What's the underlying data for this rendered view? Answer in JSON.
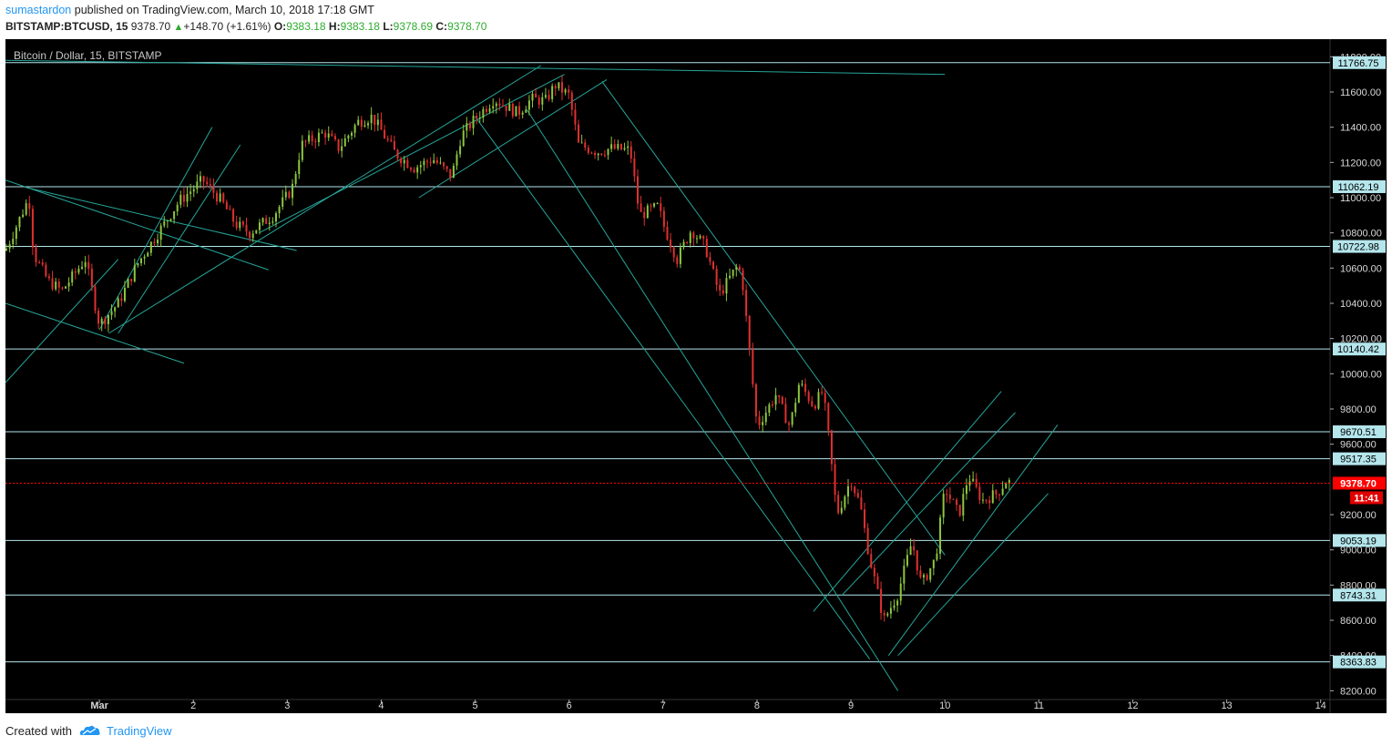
{
  "header": {
    "author": "sumastardon",
    "published_text": "published on TradingView.com, March 10, 2018 17:18 GMT",
    "symbol": "BITSTAMP:BTCUSD, 15",
    "last": "9378.70",
    "change": "+148.70 (+1.61%)",
    "o_label": "O:",
    "o_value": "9383.18",
    "h_label": "H:",
    "h_value": "9383.18",
    "l_label": "L:",
    "l_value": "9378.69",
    "c_label": "C:",
    "c_value": "9378.70"
  },
  "footer": {
    "created_with": "Created with",
    "brand": "TradingView"
  },
  "colors": {
    "background": "#000000",
    "candle_up": "#8cc63f",
    "candle_down": "#e03030",
    "level_line": "#b4e6ec",
    "trend_line": "#26a69a",
    "last_price": "#ff0000"
  },
  "chart_data": {
    "type": "candlestick",
    "title": "Bitcoin / Dollar, 15, BITSTAMP",
    "ylim": [
      8150,
      11900
    ],
    "xlim": [
      0,
      14.1
    ],
    "y_ticks": [
      "11800.00",
      "11600.00",
      "11400.00",
      "11200.00",
      "11000.00",
      "10800.00",
      "10600.00",
      "10400.00",
      "10200.00",
      "10000.00",
      "9800.00",
      "9600.00",
      "9200.00",
      "9000.00",
      "8800.00",
      "8600.00",
      "8400.00",
      "8200.00"
    ],
    "x_ticks": [
      {
        "label": "Mar",
        "x": 1
      },
      {
        "label": "2",
        "x": 2
      },
      {
        "label": "3",
        "x": 3
      },
      {
        "label": "4",
        "x": 4
      },
      {
        "label": "5",
        "x": 5
      },
      {
        "label": "6",
        "x": 6
      },
      {
        "label": "7",
        "x": 7
      },
      {
        "label": "8",
        "x": 8
      },
      {
        "label": "9",
        "x": 9
      },
      {
        "label": "10",
        "x": 10
      },
      {
        "label": "11",
        "x": 11
      },
      {
        "label": "12",
        "x": 12
      },
      {
        "label": "13",
        "x": 13
      },
      {
        "label": "14",
        "x": 14
      }
    ],
    "levels": [
      {
        "value": 11766.75,
        "label": "11766.75"
      },
      {
        "value": 11062.19,
        "label": "11062.19"
      },
      {
        "value": 10722.98,
        "label": "10722.98"
      },
      {
        "value": 10140.42,
        "label": "10140.42"
      },
      {
        "value": 9670.51,
        "label": "9670.51"
      },
      {
        "value": 9517.35,
        "label": "9517.35"
      },
      {
        "value": 9053.19,
        "label": "9053.19"
      },
      {
        "value": 8743.31,
        "label": "8743.31"
      },
      {
        "value": 8363.83,
        "label": "8363.83"
      }
    ],
    "last_price": {
      "value": 9378.7,
      "label": "9378.70",
      "countdown": "11:41"
    },
    "price_path": [
      [
        0.0,
        10700
      ],
      [
        0.25,
        11000
      ],
      [
        0.3,
        10680
      ],
      [
        0.45,
        10530
      ],
      [
        0.6,
        10470
      ],
      [
        0.85,
        10650
      ],
      [
        1.0,
        10280
      ],
      [
        1.2,
        10400
      ],
      [
        1.4,
        10620
      ],
      [
        1.6,
        10780
      ],
      [
        1.85,
        10980
      ],
      [
        2.1,
        11100
      ],
      [
        2.3,
        10980
      ],
      [
        2.45,
        10850
      ],
      [
        2.6,
        10800
      ],
      [
        2.85,
        10900
      ],
      [
        3.05,
        11050
      ],
      [
        3.15,
        11300
      ],
      [
        3.4,
        11370
      ],
      [
        3.55,
        11280
      ],
      [
        3.75,
        11430
      ],
      [
        3.9,
        11460
      ],
      [
        4.0,
        11380
      ],
      [
        4.15,
        11250
      ],
      [
        4.35,
        11170
      ],
      [
        4.55,
        11220
      ],
      [
        4.75,
        11120
      ],
      [
        4.85,
        11350
      ],
      [
        5.0,
        11450
      ],
      [
        5.2,
        11560
      ],
      [
        5.45,
        11480
      ],
      [
        5.6,
        11560
      ],
      [
        5.75,
        11550
      ],
      [
        5.85,
        11640
      ],
      [
        6.0,
        11580
      ],
      [
        6.1,
        11300
      ],
      [
        6.3,
        11260
      ],
      [
        6.45,
        11280
      ],
      [
        6.65,
        11270
      ],
      [
        6.75,
        10900
      ],
      [
        6.95,
        10950
      ],
      [
        7.0,
        10850
      ],
      [
        7.15,
        10650
      ],
      [
        7.3,
        10820
      ],
      [
        7.45,
        10720
      ],
      [
        7.6,
        10450
      ],
      [
        7.8,
        10620
      ],
      [
        7.85,
        10500
      ],
      [
        8.0,
        9700
      ],
      [
        8.2,
        9880
      ],
      [
        8.35,
        9700
      ],
      [
        8.45,
        9950
      ],
      [
        8.6,
        9820
      ],
      [
        8.7,
        9900
      ],
      [
        8.75,
        9700
      ],
      [
        8.85,
        9200
      ],
      [
        9.0,
        9400
      ],
      [
        9.1,
        9250
      ],
      [
        9.2,
        8950
      ],
      [
        9.35,
        8600
      ],
      [
        9.5,
        8750
      ],
      [
        9.65,
        9050
      ],
      [
        9.75,
        8800
      ],
      [
        9.9,
        8950
      ],
      [
        10.0,
        9350
      ],
      [
        10.15,
        9200
      ],
      [
        10.25,
        9420
      ],
      [
        10.4,
        9280
      ],
      [
        10.55,
        9320
      ],
      [
        10.65,
        9390
      ],
      [
        10.72,
        9379
      ]
    ],
    "trend_lines": [
      [
        [
          0.0,
          11780
        ],
        [
          10.0,
          11700
        ]
      ],
      [
        [
          0.0,
          9950
        ],
        [
          1.2,
          10650
        ]
      ],
      [
        [
          1.0,
          10250
        ],
        [
          2.2,
          11400
        ]
      ],
      [
        [
          1.2,
          10230
        ],
        [
          2.5,
          11300
        ]
      ],
      [
        [
          1.1,
          10230
        ],
        [
          5.7,
          11750
        ]
      ],
      [
        [
          2.7,
          10800
        ],
        [
          5.95,
          11700
        ]
      ],
      [
        [
          4.4,
          11000
        ],
        [
          6.4,
          11670
        ]
      ],
      [
        [
          0.0,
          10400
        ],
        [
          1.9,
          10060
        ]
      ],
      [
        [
          0.2,
          11060
        ],
        [
          3.1,
          10700
        ]
      ],
      [
        [
          0.0,
          11100
        ],
        [
          2.8,
          10590
        ]
      ],
      [
        [
          5.0,
          11460
        ],
        [
          9.2,
          8380
        ]
      ],
      [
        [
          5.55,
          11500
        ],
        [
          9.5,
          8200
        ]
      ],
      [
        [
          6.35,
          11660
        ],
        [
          10.0,
          8970
        ]
      ],
      [
        [
          8.6,
          8650
        ],
        [
          10.6,
          9900
        ]
      ],
      [
        [
          8.9,
          8740
        ],
        [
          10.75,
          9780
        ]
      ],
      [
        [
          9.4,
          8400
        ],
        [
          11.2,
          9710
        ]
      ],
      [
        [
          9.5,
          8400
        ],
        [
          11.1,
          9320
        ]
      ]
    ]
  }
}
